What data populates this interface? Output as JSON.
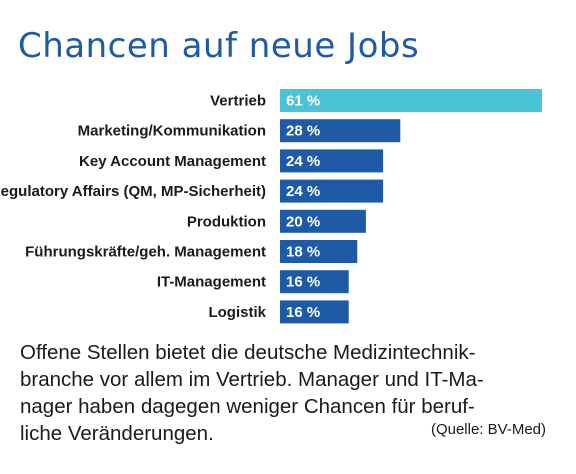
{
  "title": "Chancen auf neue Jobs",
  "chart_data": {
    "type": "bar",
    "orientation": "horizontal",
    "categories": [
      "Vertrieb",
      "Marketing/Kommunikation",
      "Key Account Management",
      "Regulatory Affairs (QM, MP-Sicherheit)",
      "Produktion",
      "Führungskräfte/geh. Management",
      "IT-Management",
      "Logistik"
    ],
    "values": [
      61,
      28,
      24,
      24,
      20,
      18,
      16,
      16
    ],
    "value_labels": [
      "61 %",
      "28 %",
      "24 %",
      "24 %",
      "20 %",
      "18 %",
      "16 %",
      "16 %"
    ],
    "unit": "%",
    "highlight_color": "#4bc3d6",
    "bar_color": "#1f5aa6",
    "grid": false,
    "legend": "none"
  },
  "caption": {
    "lines": [
      "Offene Stellen bietet die deutsche Medizintechnik-",
      "branche vor allem im Vertrieb. Manager und IT-Ma-",
      "nager haben dagegen weniger Chancen für beruf-",
      "liche Veränderungen."
    ]
  },
  "source": "(Quelle: BV-Med)"
}
